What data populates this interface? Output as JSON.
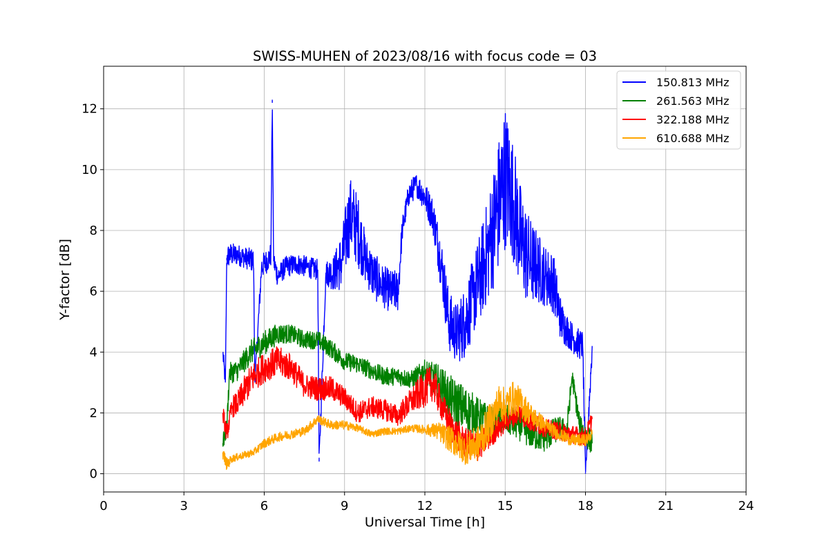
{
  "chart_data": {
    "type": "line",
    "title": "SWISS-MUHEN of 2023/08/16 with focus code = 03",
    "xlabel": "Universal Time [h]",
    "ylabel": "Y-factor [dB]",
    "xlim": [
      0,
      24
    ],
    "ylim": [
      -0.6,
      13.4
    ],
    "xticks": [
      0,
      3,
      6,
      9,
      12,
      15,
      18,
      21,
      24
    ],
    "yticks": [
      0,
      2,
      4,
      6,
      8,
      10,
      12
    ],
    "xtick_labels": [
      "0",
      "3",
      "6",
      "9",
      "12",
      "15",
      "18",
      "21",
      "24"
    ],
    "ytick_labels": [
      "0",
      "2",
      "4",
      "6",
      "8",
      "10",
      "12"
    ],
    "grid": true,
    "legend_position": "top-right",
    "series": [
      {
        "name": "150.813 MHz",
        "color": "#0000ff",
        "x": [
          4.45,
          4.55,
          4.6,
          4.7,
          5.0,
          5.3,
          5.6,
          5.65,
          5.9,
          6.1,
          6.25,
          6.3,
          6.35,
          6.5,
          6.8,
          7.2,
          7.6,
          8.0,
          8.05,
          8.3,
          8.6,
          8.9,
          9.2,
          9.5,
          9.8,
          10.1,
          10.4,
          10.7,
          11.0,
          11.15,
          11.4,
          11.7,
          12.0,
          12.3,
          12.6,
          12.9,
          13.2,
          13.5,
          13.8,
          14.1,
          14.4,
          14.7,
          15.0,
          15.3,
          15.6,
          15.9,
          16.2,
          16.5,
          16.8,
          17.1,
          17.4,
          17.7,
          17.9,
          18.0,
          18.25
        ],
        "y": [
          4.0,
          3.0,
          7.1,
          7.2,
          7.2,
          7.1,
          7.0,
          3.0,
          6.8,
          7.0,
          7.2,
          12.3,
          7.0,
          6.5,
          6.8,
          6.9,
          6.8,
          6.7,
          0.4,
          6.6,
          6.6,
          7.0,
          8.5,
          8.0,
          7.0,
          6.5,
          6.2,
          6.0,
          6.0,
          8.0,
          9.2,
          9.5,
          9.1,
          8.5,
          7.0,
          5.0,
          4.6,
          5.0,
          5.8,
          6.6,
          7.5,
          8.6,
          9.8,
          9.0,
          7.6,
          7.0,
          6.8,
          6.5,
          6.3,
          5.0,
          4.6,
          4.3,
          4.2,
          0.0,
          4.2
        ],
        "noise": [
          0.3,
          0.3,
          0.4,
          0.4,
          0.35,
          0.35,
          0.4,
          0.3,
          0.4,
          0.4,
          0.4,
          0.3,
          0.4,
          0.35,
          0.35,
          0.35,
          0.35,
          0.35,
          0.3,
          0.4,
          0.6,
          1.0,
          1.3,
          1.2,
          0.8,
          0.8,
          0.7,
          0.7,
          0.7,
          0.4,
          0.4,
          0.4,
          0.5,
          0.6,
          0.9,
          1.0,
          1.0,
          1.2,
          1.3,
          1.5,
          1.8,
          2.2,
          2.4,
          2.0,
          1.8,
          1.5,
          1.2,
          1.0,
          1.0,
          0.7,
          0.5,
          0.5,
          0.5,
          0.3,
          0.5
        ]
      },
      {
        "name": "261.563 MHz",
        "color": "#008000",
        "x": [
          4.45,
          4.6,
          4.7,
          5.0,
          5.5,
          6.0,
          6.5,
          7.0,
          7.5,
          8.0,
          8.5,
          9.0,
          9.5,
          10.0,
          10.5,
          11.0,
          11.5,
          12.0,
          12.5,
          13.0,
          13.5,
          14.0,
          14.5,
          15.0,
          15.5,
          16.0,
          16.5,
          17.0,
          17.3,
          17.5,
          17.8,
          18.0,
          18.25
        ],
        "y": [
          1.0,
          1.5,
          3.3,
          3.4,
          4.0,
          4.3,
          4.6,
          4.6,
          4.4,
          4.4,
          4.1,
          3.7,
          3.6,
          3.4,
          3.2,
          3.2,
          3.1,
          3.4,
          3.0,
          2.4,
          2.1,
          1.9,
          1.7,
          1.8,
          1.6,
          1.3,
          1.2,
          1.5,
          1.4,
          3.2,
          1.5,
          1.3,
          1.0
        ],
        "noise": [
          0.3,
          0.3,
          0.35,
          0.35,
          0.4,
          0.4,
          0.35,
          0.3,
          0.3,
          0.3,
          0.3,
          0.3,
          0.3,
          0.3,
          0.3,
          0.3,
          0.3,
          0.35,
          0.6,
          0.8,
          0.8,
          0.6,
          0.5,
          0.5,
          0.5,
          0.5,
          0.5,
          0.4,
          0.4,
          0.3,
          0.4,
          0.4,
          0.4
        ]
      },
      {
        "name": "322.188 MHz",
        "color": "#ff0000",
        "x": [
          4.45,
          4.6,
          4.8,
          5.0,
          5.3,
          5.6,
          6.0,
          6.5,
          7.0,
          7.5,
          8.0,
          8.5,
          9.0,
          9.5,
          10.0,
          10.5,
          11.0,
          11.5,
          12.0,
          12.3,
          12.6,
          13.0,
          13.5,
          14.0,
          14.5,
          15.0,
          15.5,
          16.0,
          16.5,
          17.0,
          17.5,
          18.0,
          18.25
        ],
        "y": [
          2.0,
          1.3,
          2.2,
          2.3,
          2.8,
          3.2,
          3.5,
          3.7,
          3.5,
          2.9,
          2.8,
          2.8,
          2.5,
          2.0,
          2.2,
          2.1,
          1.9,
          2.4,
          2.8,
          3.0,
          2.3,
          1.5,
          1.0,
          0.9,
          1.3,
          1.7,
          2.0,
          1.7,
          1.5,
          1.4,
          1.3,
          1.2,
          1.8
        ],
        "noise": [
          0.3,
          0.3,
          0.35,
          0.4,
          0.5,
          0.5,
          0.5,
          0.5,
          0.45,
          0.4,
          0.4,
          0.4,
          0.35,
          0.35,
          0.35,
          0.35,
          0.35,
          0.45,
          0.6,
          0.6,
          0.5,
          0.5,
          0.5,
          0.5,
          0.4,
          0.35,
          0.35,
          0.35,
          0.3,
          0.3,
          0.3,
          0.3,
          0.3
        ]
      },
      {
        "name": "610.688 MHz",
        "color": "#ffa500",
        "x": [
          4.45,
          4.6,
          4.8,
          5.2,
          5.6,
          6.0,
          6.5,
          7.0,
          7.5,
          8.0,
          8.5,
          9.0,
          9.5,
          10.0,
          10.5,
          11.0,
          11.5,
          12.0,
          12.5,
          13.0,
          13.5,
          14.0,
          14.5,
          14.8,
          15.0,
          15.3,
          15.6,
          16.0,
          16.5,
          17.0,
          17.5,
          18.0,
          18.25
        ],
        "y": [
          0.7,
          0.3,
          0.5,
          0.6,
          0.7,
          1.0,
          1.2,
          1.3,
          1.4,
          1.8,
          1.6,
          1.6,
          1.5,
          1.3,
          1.4,
          1.4,
          1.5,
          1.45,
          1.4,
          1.1,
          0.8,
          1.0,
          1.8,
          2.4,
          2.2,
          2.5,
          2.3,
          1.9,
          1.6,
          1.3,
          1.1,
          1.1,
          1.3
        ],
        "noise": [
          0.2,
          0.2,
          0.12,
          0.12,
          0.12,
          0.15,
          0.15,
          0.15,
          0.15,
          0.15,
          0.15,
          0.15,
          0.12,
          0.12,
          0.12,
          0.12,
          0.12,
          0.15,
          0.3,
          0.45,
          0.5,
          0.6,
          0.65,
          0.6,
          0.6,
          0.55,
          0.5,
          0.35,
          0.25,
          0.2,
          0.2,
          0.2,
          0.2
        ]
      }
    ]
  }
}
